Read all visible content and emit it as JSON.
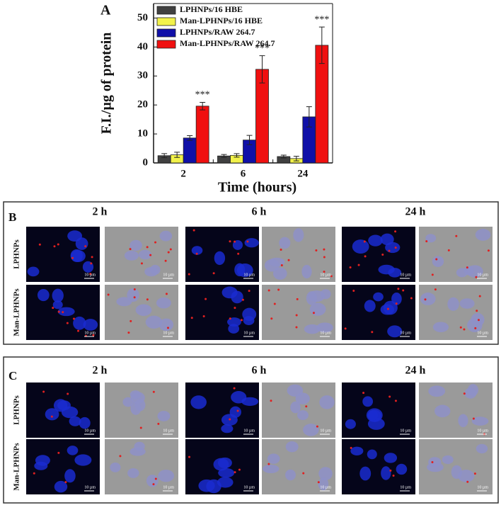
{
  "chart_data": {
    "type": "bar",
    "panel_label": "A",
    "xlabel": "Time (hours)",
    "ylabel": "F.I./µg of protein",
    "categories": [
      "2",
      "6",
      "24"
    ],
    "series": [
      {
        "name": "LPHNPs/16 HBE",
        "color": "#404040",
        "values": [
          2.5,
          2.4,
          2.2
        ],
        "errors": [
          0.7,
          0.5,
          0.5
        ]
      },
      {
        "name": "Man-LPHNPs/16 HBE",
        "color": "#f2f24a",
        "values": [
          2.8,
          2.6,
          1.5
        ],
        "errors": [
          0.9,
          0.6,
          0.8
        ]
      },
      {
        "name": "LPHNPs/RAW 264.7",
        "color": "#1010a8",
        "values": [
          8.6,
          7.9,
          15.9
        ],
        "errors": [
          0.8,
          1.6,
          3.5
        ]
      },
      {
        "name": "Man-LPHNPs/RAW 264.7",
        "color": "#f01010",
        "values": [
          19.6,
          32.3,
          40.6
        ],
        "errors": [
          1.3,
          4.7,
          6.3
        ]
      }
    ],
    "significance": [
      "***",
      "***",
      "***"
    ],
    "ylim": [
      0,
      55
    ],
    "yticks": [
      0,
      10,
      20,
      30,
      40,
      50
    ],
    "legend": "upper left"
  },
  "panels": [
    {
      "label": "B",
      "columns": [
        "2 h",
        "6 h",
        "24 h"
      ],
      "rows": [
        "LPHNPs",
        "Man-LPHNPs"
      ],
      "scale_bar": "10 µm"
    },
    {
      "label": "C",
      "columns": [
        "2 h",
        "6 h",
        "24 h"
      ],
      "rows": [
        "LPHNPs",
        "Man-LPHNPs"
      ],
      "scale_bar": "10 µm"
    }
  ]
}
